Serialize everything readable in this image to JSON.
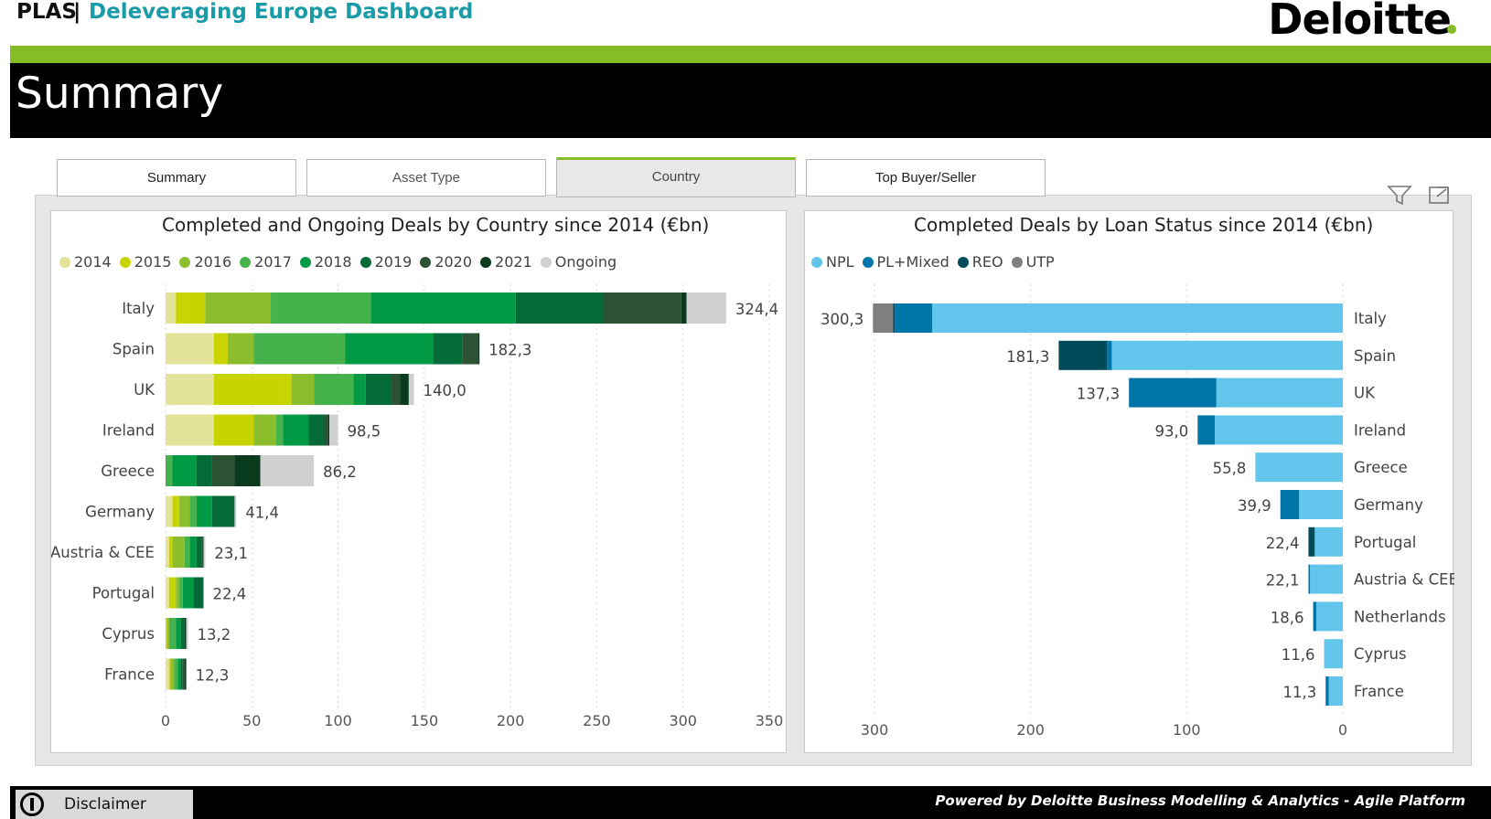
{
  "header": {
    "brand": "PLAS",
    "separator": "|",
    "dashboard_title": "Deleveraging Europe Dashboard",
    "logo_text": "Deloitte"
  },
  "page_title": "Summary",
  "tabs": [
    {
      "label": "Summary"
    },
    {
      "label": "Asset Type"
    },
    {
      "label": "Country"
    },
    {
      "label": "Top Buyer/Seller"
    }
  ],
  "active_tab": "Country",
  "icons": {
    "filter": "filter-icon",
    "expand": "focus-mode-icon"
  },
  "colors": {
    "brand_green": "#86bc25",
    "brand_teal": "#1a9ba8"
  },
  "chart_data": [
    {
      "type": "bar",
      "orientation": "horizontal",
      "stacked": true,
      "title": "Completed and Ongoing Deals by Country since 2014 (€bn)",
      "categories": [
        "Italy",
        "Spain",
        "UK",
        "Ireland",
        "Greece",
        "Germany",
        "Austria & CEE",
        "Portugal",
        "Cyprus",
        "France"
      ],
      "series": [
        {
          "name": "2014",
          "color": "#e3e39a",
          "values": [
            6,
            28,
            28,
            28,
            0,
            4,
            2,
            2,
            0,
            2
          ]
        },
        {
          "name": "2015",
          "color": "#c8d400",
          "values": [
            17,
            8,
            45,
            23,
            0,
            4,
            2,
            4,
            1,
            1
          ]
        },
        {
          "name": "2016",
          "color": "#8cbd2c",
          "values": [
            38,
            15,
            13,
            13,
            0,
            6,
            7,
            2,
            1,
            2
          ]
        },
        {
          "name": "2017",
          "color": "#46b24b",
          "values": [
            58,
            53,
            23,
            4,
            4,
            4,
            3,
            2,
            4,
            2
          ]
        },
        {
          "name": "2018",
          "color": "#009a44",
          "values": [
            84,
            51,
            7,
            15,
            14,
            9,
            4,
            6,
            3,
            2
          ]
        },
        {
          "name": "2019",
          "color": "#046a38",
          "values": [
            51,
            17,
            15,
            9,
            9,
            13,
            3,
            6,
            2,
            1
          ]
        },
        {
          "name": "2020",
          "color": "#2c5234",
          "values": [
            45,
            9,
            5,
            2,
            13,
            0,
            1,
            0,
            0,
            1
          ]
        },
        {
          "name": "2021",
          "color": "#0b3b1e",
          "values": [
            3,
            1,
            5,
            1,
            15,
            0,
            0,
            0,
            1,
            1
          ]
        },
        {
          "name": "Ongoing",
          "color": "#d0d0d0",
          "values": [
            23,
            0,
            3,
            5,
            31,
            1,
            1,
            0,
            1,
            0
          ]
        }
      ],
      "totals": [
        "324,4",
        "182,3",
        "140,0",
        "98,5",
        "86,2",
        "41,4",
        "23,1",
        "22,4",
        "13,2",
        "12,3"
      ],
      "xlim": [
        0,
        350
      ],
      "xticks": [
        "0",
        "50",
        "100",
        "150",
        "200",
        "250",
        "300",
        "350"
      ],
      "legend": "top-left",
      "grid": "vertical dotted"
    },
    {
      "type": "bar",
      "orientation": "horizontal",
      "stacked": true,
      "reversed": true,
      "title": "Completed Deals by Loan Status since 2014 (€bn)",
      "categories": [
        "Italy",
        "Spain",
        "UK",
        "Ireland",
        "Greece",
        "Germany",
        "Portugal",
        "Austria & CEE",
        "Netherlands",
        "Cyprus",
        "France"
      ],
      "series": [
        {
          "name": "NPL",
          "color": "#62c6ec",
          "values": [
            263,
            148,
            81,
            82,
            56,
            28,
            18,
            21,
            17,
            12,
            9
          ]
        },
        {
          "name": "PL+Mixed",
          "color": "#0076a8",
          "values": [
            24,
            3,
            56,
            11,
            0,
            12,
            0,
            1,
            2,
            0,
            2
          ]
        },
        {
          "name": "REO",
          "color": "#004b5a",
          "values": [
            1,
            31,
            0,
            0,
            0,
            0,
            4,
            0,
            0,
            0,
            0
          ]
        },
        {
          "name": "UTP",
          "color": "#7f7f7f",
          "values": [
            13,
            0,
            0,
            0,
            0,
            0,
            0,
            0,
            0,
            0,
            0
          ]
        }
      ],
      "totals": [
        "300,3",
        "181,3",
        "137,3",
        "93,0",
        "55,8",
        "39,9",
        "22,4",
        "22,1",
        "18,6",
        "11,6",
        "11,3"
      ],
      "xlim": [
        0,
        300
      ],
      "xticks": [
        "300",
        "200",
        "100",
        "0"
      ],
      "legend": "top-left",
      "grid": "vertical dotted"
    }
  ],
  "footer": {
    "disclaimer_label": "Disclaimer",
    "powered_by": "Powered by Deloitte Business Modelling & Analytics - Agile Platform"
  }
}
